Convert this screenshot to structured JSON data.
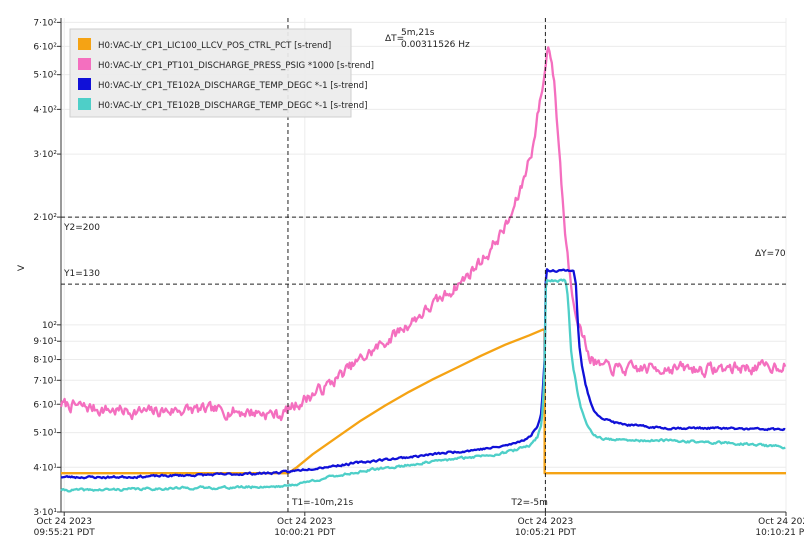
{
  "chart_data": {
    "type": "line",
    "y_scale": "log",
    "ylabel": "V",
    "grid": true,
    "legend_position": "top-left",
    "legend": [
      {
        "label": "H0:VAC-LY_CP1_LIC100_LLCV_POS_CTRL_PCT [s-trend]",
        "color": "#f5a314"
      },
      {
        "label": "H0:VAC-LY_CP1_PT101_DISCHARGE_PRESS_PSIG *1000 [s-trend]",
        "color": "#f46fbf"
      },
      {
        "label": "H0:VAC-LY_CP1_TE102A_DISCHARGE_TEMP_DEGC *-1 [s-trend]",
        "color": "#1010d8"
      },
      {
        "label": "H0:VAC-LY_CP1_TE102B_DISCHARGE_TEMP_DEGC *-1 [s-trend]",
        "color": "#4ecfc8"
      }
    ],
    "y_ticks": [
      {
        "value": 30,
        "label": "3·10¹"
      },
      {
        "value": 40,
        "label": "4·10¹"
      },
      {
        "value": 50,
        "label": "5·10¹"
      },
      {
        "value": 60,
        "label": "6·10¹"
      },
      {
        "value": 70,
        "label": "7·10¹"
      },
      {
        "value": 80,
        "label": "8·10¹"
      },
      {
        "value": 90,
        "label": "9·10¹"
      },
      {
        "value": 100,
        "label": "10²"
      },
      {
        "value": 200,
        "label": "2·10²"
      },
      {
        "value": 300,
        "label": "3·10²"
      },
      {
        "value": 400,
        "label": "4·10²"
      },
      {
        "value": 500,
        "label": "5·10²"
      },
      {
        "value": 600,
        "label": "6·10²"
      },
      {
        "value": 700,
        "label": "7·10²"
      }
    ],
    "x_ticks": [
      {
        "t": -900,
        "line1": "Oct 24 2023",
        "line2": "09:55:21 PDT"
      },
      {
        "t": -600,
        "line1": "Oct 24 2023",
        "line2": "10:00:21 PDT"
      },
      {
        "t": -300,
        "line1": "Oct 24 2023",
        "line2": "10:05:21 PDT"
      },
      {
        "t": 0,
        "line1": "Oct 24 2023",
        "line2": "10:10:21 PDT"
      }
    ],
    "x_range": [
      -904,
      0
    ],
    "y_range": [
      30,
      720
    ],
    "cursors": {
      "t1": {
        "t": -621,
        "label": "T1=-10m,21s"
      },
      "t2": {
        "t": -300,
        "label": "T2=-5m"
      },
      "delta_t": {
        "prefix": "ΔT=",
        "value": "5m,21s",
        "freq": "0.00311526 Hz"
      },
      "y1": {
        "value": 130,
        "label": "Y1=130"
      },
      "y2": {
        "value": 200,
        "label": "Y2=200"
      },
      "delta_y": {
        "label": "ΔY=70"
      }
    },
    "series": [
      {
        "name": "H0:VAC-LY_CP1_LIC100_LLCV_POS_CTRL_PCT [s-trend]",
        "color": "#f5a314",
        "t": [
          -904,
          -621,
          -610,
          -590,
          -560,
          -530,
          -500,
          -470,
          -440,
          -410,
          -380,
          -350,
          -320,
          -303,
          -301,
          -301,
          -290,
          -260,
          -200,
          -150,
          -100,
          -50,
          0
        ],
        "y": [
          38.5,
          38.5,
          40,
          43.5,
          48.5,
          54,
          59.5,
          65,
          70.5,
          76,
          82,
          88,
          93.5,
          97,
          97,
          38.5,
          38.5,
          38.5,
          38.5,
          38.5,
          38.5,
          38.5,
          38.5
        ],
        "noise": 0
      },
      {
        "name": "H0:VAC-LY_CP1_PT101_DISCHARGE_PRESS_PSIG *1000 [s-trend]",
        "color": "#f46fbf",
        "t": [
          -904,
          -850,
          -800,
          -750,
          -700,
          -660,
          -630,
          -621,
          -610,
          -590,
          -570,
          -550,
          -520,
          -490,
          -460,
          -430,
          -400,
          -370,
          -345,
          -330,
          -315,
          -305,
          -300,
          -296,
          -290,
          -285,
          -280,
          -275,
          -270,
          -265,
          -255,
          -245,
          -235,
          -225,
          -200,
          -150,
          -100,
          -60,
          -30,
          -10,
          0
        ],
        "y": [
          60,
          58,
          57,
          58,
          57.5,
          57,
          56,
          58,
          60,
          64,
          68,
          74,
          83,
          93,
          105,
          118,
          135,
          160,
          195,
          240,
          320,
          440,
          520,
          620,
          500,
          360,
          250,
          175,
          140,
          118,
          95,
          82,
          77,
          76,
          75,
          76,
          75,
          76,
          76,
          77,
          78
        ],
        "noise": 0.045,
        "seed": 7
      },
      {
        "name": "H0:VAC-LY_CP1_TE102A_DISCHARGE_TEMP_DEGC *-1 [s-trend]",
        "color": "#1010d8",
        "t": [
          -904,
          -850,
          -800,
          -750,
          -700,
          -650,
          -621,
          -600,
          -570,
          -540,
          -510,
          -480,
          -450,
          -420,
          -390,
          -360,
          -340,
          -320,
          -310,
          -305,
          -303,
          -301,
          -300,
          -298,
          -296,
          -294,
          -285,
          -275,
          -265,
          -262,
          -260,
          -258,
          -255,
          -250,
          -245,
          -240,
          -230,
          -210,
          -180,
          -150,
          -100,
          -50,
          0
        ],
        "y": [
          37.6,
          37.5,
          37.7,
          38,
          38.2,
          38.5,
          38.8,
          39.5,
          40.2,
          41,
          41.8,
          42.5,
          43.2,
          44,
          44.7,
          45.5,
          46.5,
          48.5,
          52,
          57,
          67,
          80,
          128,
          142,
          142,
          142,
          142,
          142,
          142,
          130,
          105,
          88,
          78,
          68,
          62,
          58,
          55,
          53,
          52,
          51.5,
          51.5,
          51.2,
          51
        ],
        "noise": 0.008,
        "seed": 23
      },
      {
        "name": "H0:VAC-LY_CP1_TE102B_DISCHARGE_TEMP_DEGC *-1 [s-trend]",
        "color": "#4ecfc8",
        "t": [
          -904,
          -850,
          -800,
          -750,
          -700,
          -650,
          -621,
          -600,
          -570,
          -540,
          -510,
          -480,
          -450,
          -420,
          -390,
          -360,
          -340,
          -320,
          -310,
          -305,
          -303,
          -301,
          -300,
          -298,
          -295,
          -290,
          -285,
          -280,
          -275,
          -272,
          -270,
          -268,
          -265,
          -260,
          -255,
          -250,
          -245,
          -240,
          -235,
          -225,
          -200,
          -150,
          -100,
          -50,
          0
        ],
        "y": [
          34.5,
          34.6,
          34.8,
          35,
          35.1,
          35.3,
          35.5,
          36.3,
          37.5,
          38.6,
          39.5,
          40.3,
          41.2,
          42,
          42.8,
          43.6,
          44.5,
          46,
          48.5,
          53,
          60,
          75,
          125,
          133,
          133,
          133,
          133,
          133,
          133,
          120,
          100,
          85,
          75,
          65,
          58,
          54,
          51,
          49.5,
          48.5,
          48,
          47.5,
          47.5,
          47,
          46.5,
          45.5
        ],
        "noise": 0.009,
        "seed": 41
      }
    ]
  }
}
